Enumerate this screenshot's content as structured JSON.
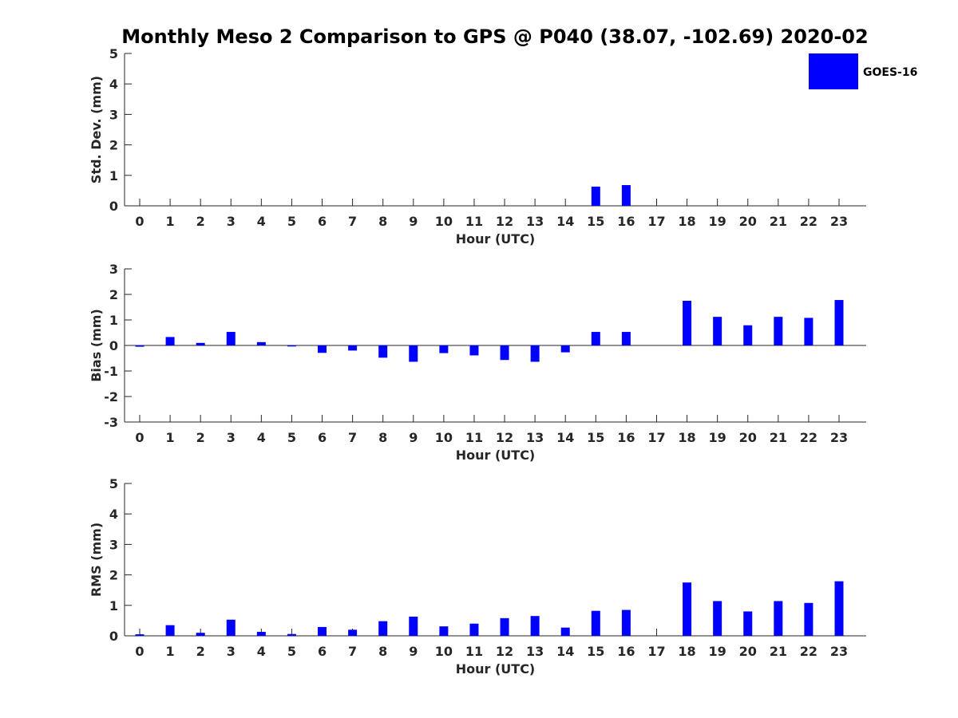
{
  "title": "Monthly Meso 2 Comparison to GPS @ P040 (38.07, -102.69) 2020-02",
  "legend": {
    "label": "GOES-16",
    "color": "#0000ff",
    "position": "top-right"
  },
  "chart_data": [
    {
      "type": "bar",
      "ylabel": "Std. Dev. (mm)",
      "xlabel": "Hour (UTC)",
      "categories": [
        "0",
        "1",
        "2",
        "3",
        "4",
        "5",
        "6",
        "7",
        "8",
        "9",
        "10",
        "11",
        "12",
        "13",
        "14",
        "15",
        "16",
        "17",
        "18",
        "19",
        "20",
        "21",
        "22",
        "23"
      ],
      "yticks": [
        "0",
        "1",
        "2",
        "3",
        "4",
        "5"
      ],
      "ylim": [
        0,
        5
      ],
      "series": [
        {
          "name": "GOES-16",
          "values": [
            0,
            0,
            0,
            0,
            0,
            0,
            0,
            0,
            0,
            0,
            0,
            0,
            0,
            0,
            0,
            0.63,
            0.68,
            0,
            0,
            0,
            0,
            0,
            0,
            0
          ]
        }
      ]
    },
    {
      "type": "bar",
      "ylabel": "Bias (mm)",
      "xlabel": "Hour (UTC)",
      "categories": [
        "0",
        "1",
        "2",
        "3",
        "4",
        "5",
        "6",
        "7",
        "8",
        "9",
        "10",
        "11",
        "12",
        "13",
        "14",
        "15",
        "16",
        "17",
        "18",
        "19",
        "20",
        "21",
        "22",
        "23"
      ],
      "yticks": [
        "-3",
        "-2",
        "-1",
        "0",
        "1",
        "2",
        "3"
      ],
      "ylim": [
        -3,
        3
      ],
      "series": [
        {
          "name": "GOES-16",
          "values": [
            -0.05,
            0.33,
            0.1,
            0.53,
            0.13,
            -0.04,
            -0.29,
            -0.2,
            -0.48,
            -0.64,
            -0.3,
            -0.39,
            -0.57,
            -0.64,
            -0.27,
            0.53,
            0.53,
            0,
            1.75,
            1.12,
            0.79,
            1.12,
            1.08,
            1.78
          ]
        }
      ]
    },
    {
      "type": "bar",
      "ylabel": "RMS (mm)",
      "xlabel": "Hour (UTC)",
      "categories": [
        "0",
        "1",
        "2",
        "3",
        "4",
        "5",
        "6",
        "7",
        "8",
        "9",
        "10",
        "11",
        "12",
        "13",
        "14",
        "15",
        "16",
        "17",
        "18",
        "19",
        "20",
        "21",
        "22",
        "23"
      ],
      "yticks": [
        "0",
        "1",
        "2",
        "3",
        "4",
        "5"
      ],
      "ylim": [
        0,
        5
      ],
      "series": [
        {
          "name": "GOES-16",
          "values": [
            0.05,
            0.35,
            0.1,
            0.53,
            0.13,
            0.06,
            0.29,
            0.2,
            0.48,
            0.63,
            0.31,
            0.4,
            0.58,
            0.65,
            0.27,
            0.82,
            0.85,
            0,
            1.75,
            1.14,
            0.8,
            1.14,
            1.08,
            1.79
          ]
        }
      ]
    }
  ]
}
